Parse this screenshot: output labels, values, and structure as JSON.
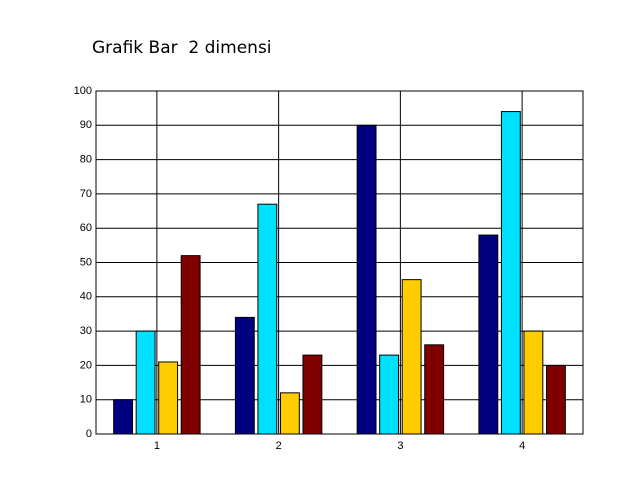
{
  "chart_data": {
    "type": "bar",
    "title": "Grafik Bar  2 dimensi",
    "x": [
      1,
      2,
      3,
      4
    ],
    "series": [
      {
        "color": "#000080",
        "values": [
          10,
          34,
          90,
          58
        ]
      },
      {
        "color": "#00e0ff",
        "values": [
          30,
          67,
          23,
          94
        ]
      },
      {
        "color": "#ffcc00",
        "values": [
          21,
          12,
          45,
          30
        ]
      },
      {
        "color": "#800000",
        "values": [
          52,
          23,
          26,
          20
        ]
      }
    ],
    "xlim": [
      0.5,
      4.5
    ],
    "xticks": [
      1,
      2,
      3,
      4
    ],
    "ylim": [
      0,
      100
    ],
    "yticks": [
      0,
      10,
      20,
      30,
      40,
      50,
      60,
      70,
      80,
      90,
      100
    ],
    "grid": true
  }
}
